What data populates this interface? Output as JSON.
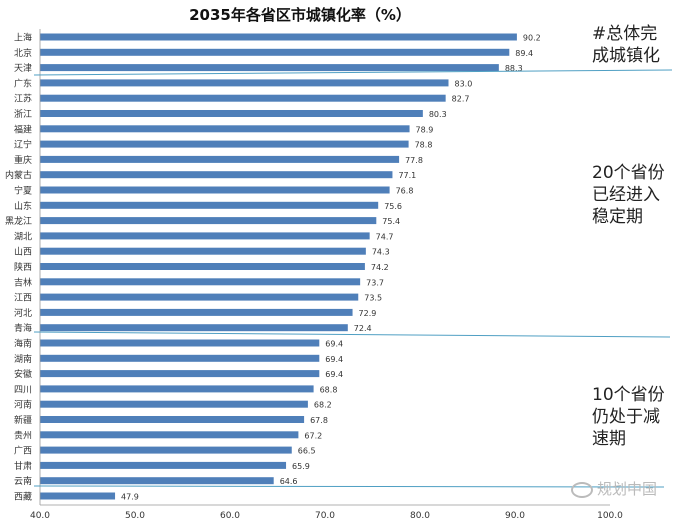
{
  "chart_data": {
    "type": "bar",
    "orientation": "horizontal",
    "title": "2035年各省区市城镇化率（%）",
    "xlim": [
      40,
      100
    ],
    "xticks": [
      "40.0",
      "50.0",
      "60.0",
      "70.0",
      "80.0",
      "90.0",
      "100.0"
    ],
    "categories": [
      "上海",
      "北京",
      "天津",
      "广东",
      "江苏",
      "浙江",
      "福建",
      "辽宁",
      "重庆",
      "内蒙古",
      "宁夏",
      "山东",
      "黑龙江",
      "湖北",
      "山西",
      "陕西",
      "吉林",
      "江西",
      "河北",
      "青海",
      "海南",
      "湖南",
      "安徽",
      "四川",
      "河南",
      "新疆",
      "贵州",
      "广西",
      "甘肃",
      "云南",
      "西藏"
    ],
    "values": [
      90.2,
      89.4,
      88.3,
      83.0,
      82.7,
      80.3,
      78.9,
      78.8,
      77.8,
      77.1,
      76.8,
      75.6,
      75.4,
      74.7,
      74.3,
      74.2,
      73.7,
      73.5,
      72.9,
      72.4,
      69.4,
      69.4,
      69.4,
      68.8,
      68.2,
      67.8,
      67.2,
      66.5,
      65.9,
      64.6,
      47.9
    ],
    "value_labels": [
      "90.2",
      "89.4",
      "88.3",
      "83.0",
      "82.7",
      "80.3",
      "78.9",
      "78.8",
      "77.8",
      "77.1",
      "76.8",
      "75.6",
      "75.4",
      "74.7",
      "74.3",
      "74.2",
      "73.7",
      "73.5",
      "72.9",
      "72.4",
      "69.4",
      "69.4",
      "69.4",
      "68.8",
      "68.2",
      "67.8",
      "67.2",
      "66.5",
      "65.9",
      "64.6",
      "47.9"
    ],
    "bar_color": "#4f7fb9",
    "grid": false
  },
  "annotations": [
    {
      "text": "#总体完\n成城镇化"
    },
    {
      "text": "20个省份\n已经进入\n稳定期"
    },
    {
      "text": "10个省份\n仍处于减\n速期"
    }
  ],
  "separator_color": "#4f9fc3",
  "watermark": "规划中国"
}
